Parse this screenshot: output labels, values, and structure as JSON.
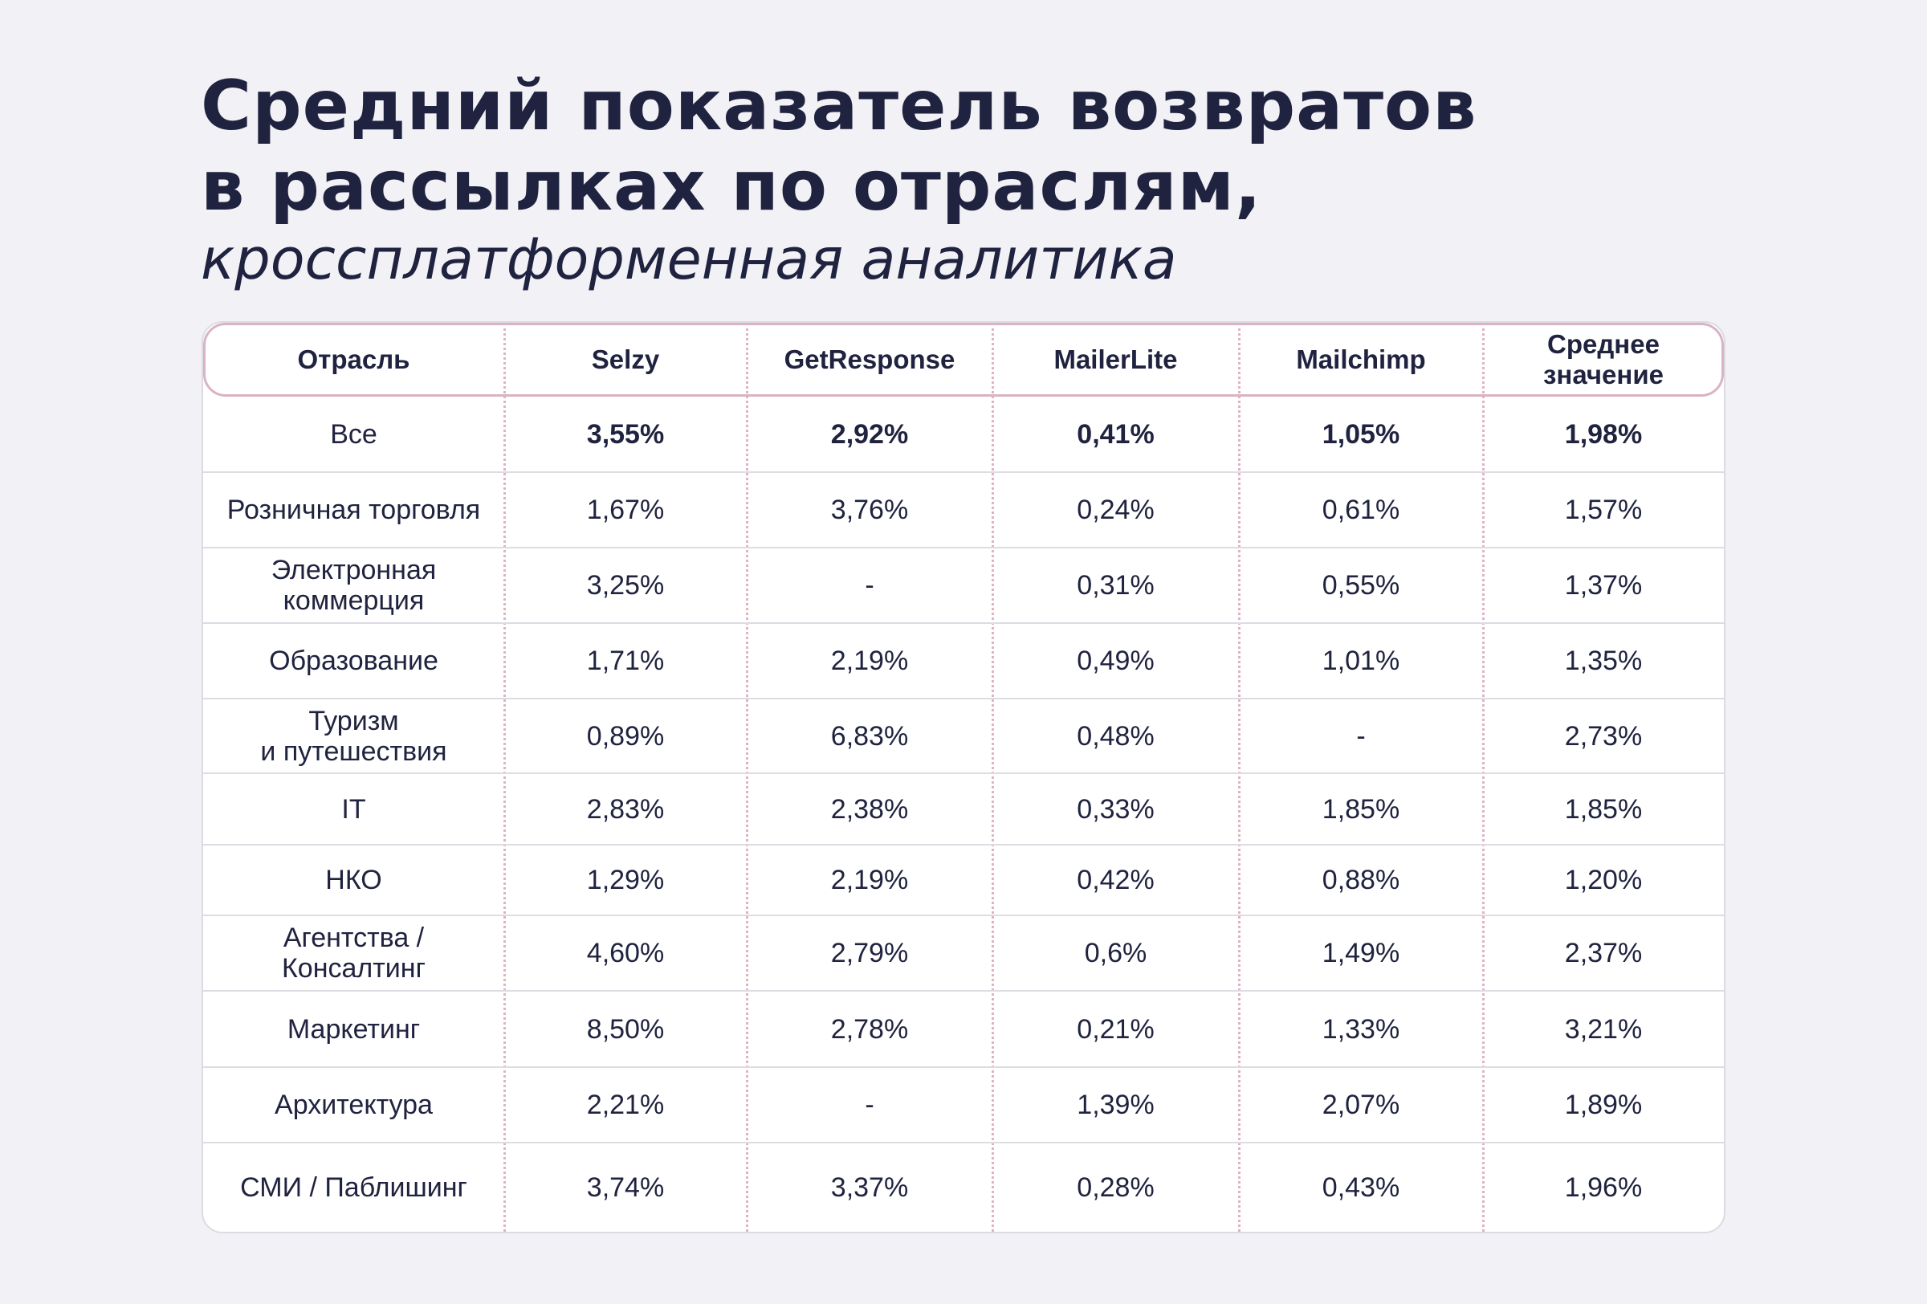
{
  "title": {
    "line1": "Средний показатель возвратов",
    "line2": "в рассылках по отраслям,",
    "subtitle": "кроссплатформенная аналитика"
  },
  "colors": {
    "background": "#f2f1f6",
    "text": "#20233f",
    "accent_border": "#d9b3c2",
    "divider": "#dddce3"
  },
  "chart_data": {
    "type": "table",
    "title": "Средний показатель возвратов в рассылках по отраслям, кроссплатформенная аналитика",
    "columns": [
      "Отрасль",
      "Selzy",
      "GetResponse",
      "MailerLite",
      "Mailchimp",
      "Среднее значение"
    ],
    "rows": [
      {
        "industry": "Все",
        "values": [
          "3,55%",
          "2,92%",
          "0,41%",
          "1,05%",
          "1,98%"
        ],
        "bold": true
      },
      {
        "industry": "Розничная торговля",
        "values": [
          "1,67%",
          "3,76%",
          "0,24%",
          "0,61%",
          "1,57%"
        ],
        "bold": false
      },
      {
        "industry": "Электронная коммерция",
        "values": [
          "3,25%",
          "-",
          "0,31%",
          "0,55%",
          "1,37%"
        ],
        "bold": false
      },
      {
        "industry": "Образование",
        "values": [
          "1,71%",
          "2,19%",
          "0,49%",
          "1,01%",
          "1,35%"
        ],
        "bold": false
      },
      {
        "industry": "Туризм и путешествия",
        "values": [
          "0,89%",
          "6,83%",
          "0,48%",
          "-",
          "2,73%"
        ],
        "bold": false
      },
      {
        "industry": "IT",
        "values": [
          "2,83%",
          "2,38%",
          "0,33%",
          "1,85%",
          "1,85%"
        ],
        "bold": false
      },
      {
        "industry": "НКО",
        "values": [
          "1,29%",
          "2,19%",
          "0,42%",
          "0,88%",
          "1,20%"
        ],
        "bold": false
      },
      {
        "industry": "Агентства / Консалтинг",
        "values": [
          "4,60%",
          "2,79%",
          "0,6%",
          "1,49%",
          "2,37%"
        ],
        "bold": false
      },
      {
        "industry": "Маркетинг",
        "values": [
          "8,50%",
          "2,78%",
          "0,21%",
          "1,33%",
          "3,21%"
        ],
        "bold": false
      },
      {
        "industry": "Архитектура",
        "values": [
          "2,21%",
          "-",
          "1,39%",
          "2,07%",
          "1,89%"
        ],
        "bold": false
      },
      {
        "industry": "СМИ / Паблишинг",
        "values": [
          "3,74%",
          "3,37%",
          "0,28%",
          "0,43%",
          "1,96%"
        ],
        "bold": false
      }
    ]
  }
}
